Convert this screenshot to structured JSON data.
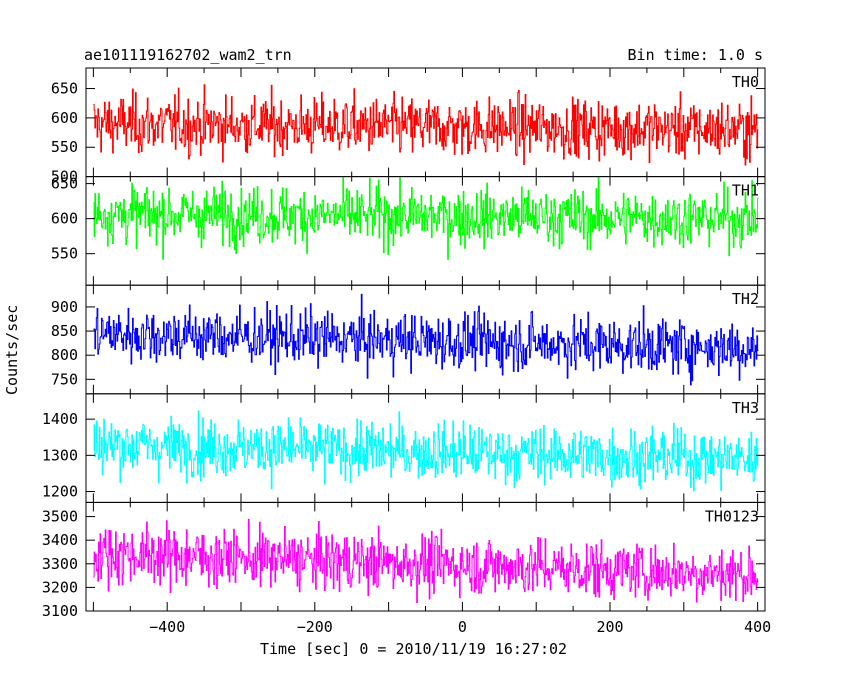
{
  "header": {
    "title": "ae101119162702_wam2_trn",
    "bin_time": "Bin time: 1.0 s"
  },
  "axes": {
    "xlabel": "Time [sec] 0 = 2010/11/19 16:27:02",
    "ylabel": "Counts/sec"
  },
  "chart_data": {
    "type": "line",
    "x_range": [
      -510,
      410
    ],
    "x_ticks": [
      -400,
      -200,
      0,
      200,
      400
    ],
    "x_step": 1.0,
    "panels": [
      {
        "name": "TH0",
        "color": "#ff0000",
        "ylim": [
          500,
          685
        ],
        "yticks": [
          500,
          550,
          600,
          650
        ],
        "mean_start": 590,
        "mean_end": 580,
        "min": 500,
        "max": 685
      },
      {
        "name": "TH1",
        "color": "#00ff00",
        "ylim": [
          505,
          660
        ],
        "yticks": [
          550,
          600,
          650
        ],
        "mean_start": 607,
        "mean_end": 600,
        "min": 508,
        "max": 660
      },
      {
        "name": "TH2",
        "color": "#0000ff",
        "ylim": [
          720,
          945
        ],
        "yticks": [
          750,
          800,
          850,
          900
        ],
        "mean_start": 845,
        "mean_end": 815,
        "min": 728,
        "max": 945
      },
      {
        "name": "TH3",
        "color": "#00ffff",
        "ylim": [
          1170,
          1470
        ],
        "yticks": [
          1200,
          1300,
          1400
        ],
        "mean_start": 1330,
        "mean_end": 1290,
        "min": 1175,
        "max": 1470
      },
      {
        "name": "TH0123",
        "color": "#ff00ff",
        "ylim": [
          3100,
          3560
        ],
        "yticks": [
          3100,
          3200,
          3300,
          3400,
          3500
        ],
        "mean_start": 3345,
        "mean_end": 3255,
        "min": 3100,
        "max": 3560
      }
    ]
  }
}
